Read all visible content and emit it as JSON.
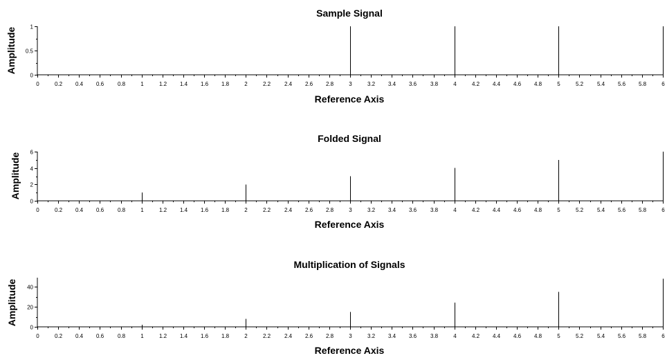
{
  "chart_data": [
    {
      "type": "bar",
      "title": "Sample Signal",
      "xlabel": "Reference Axis",
      "ylabel": "Amplitude",
      "xlim": [
        0,
        6
      ],
      "ylim": [
        0,
        1
      ],
      "x_ticks": [
        "0",
        "0.2",
        "0.4",
        "0.6",
        "0.8",
        "1",
        "1.2",
        "1.4",
        "1.6",
        "1.8",
        "2",
        "2.2",
        "2.4",
        "2.6",
        "2.8",
        "3",
        "3.2",
        "3.4",
        "3.6",
        "3.8",
        "4",
        "4.2",
        "4.4",
        "4.6",
        "4.8",
        "5",
        "5.2",
        "5.4",
        "5.6",
        "5.8",
        "6"
      ],
      "y_ticks": [
        "0",
        "0.5",
        "1"
      ],
      "x": [
        0,
        1,
        2,
        3,
        4,
        5,
        6
      ],
      "values": [
        0,
        0,
        0,
        1,
        1,
        1,
        1
      ],
      "grid": false
    },
    {
      "type": "bar",
      "title": "Folded Signal",
      "xlabel": "Reference Axis",
      "ylabel": "Amplitude",
      "xlim": [
        0,
        6
      ],
      "ylim": [
        0,
        6
      ],
      "x_ticks": [
        "0",
        "0.2",
        "0.4",
        "0.6",
        "0.8",
        "1",
        "1.2",
        "1.4",
        "1.6",
        "1.8",
        "2",
        "2.2",
        "2.4",
        "2.6",
        "2.8",
        "3",
        "3.2",
        "3.4",
        "3.6",
        "3.8",
        "4",
        "4.2",
        "4.4",
        "4.6",
        "4.8",
        "5",
        "5.2",
        "5.4",
        "5.6",
        "5.8",
        "6"
      ],
      "y_ticks": [
        "0",
        "2",
        "4",
        "6"
      ],
      "x": [
        0,
        1,
        2,
        3,
        4,
        5,
        6
      ],
      "values": [
        0,
        1,
        2,
        3,
        4,
        5,
        6
      ],
      "grid": false
    },
    {
      "type": "bar",
      "title": "Multiplication of Signals",
      "xlabel": "Reference Axis",
      "ylabel": "Amplitude",
      "xlim": [
        0,
        6
      ],
      "ylim": [
        0,
        49
      ],
      "x_ticks": [
        "0",
        "0.2",
        "0.4",
        "0.6",
        "0.8",
        "1",
        "1.2",
        "1.4",
        "1.6",
        "1.8",
        "2",
        "2.2",
        "2.4",
        "2.6",
        "2.8",
        "3",
        "3.2",
        "3.4",
        "3.6",
        "3.8",
        "4",
        "4.2",
        "4.4",
        "4.6",
        "4.8",
        "5",
        "5.2",
        "5.4",
        "5.6",
        "5.8",
        "6"
      ],
      "y_ticks": [
        "0",
        "20",
        "40"
      ],
      "x": [
        0,
        1,
        2,
        3,
        4,
        5,
        6
      ],
      "values": [
        0,
        2,
        8,
        15,
        24,
        35,
        48
      ],
      "grid": false
    }
  ]
}
